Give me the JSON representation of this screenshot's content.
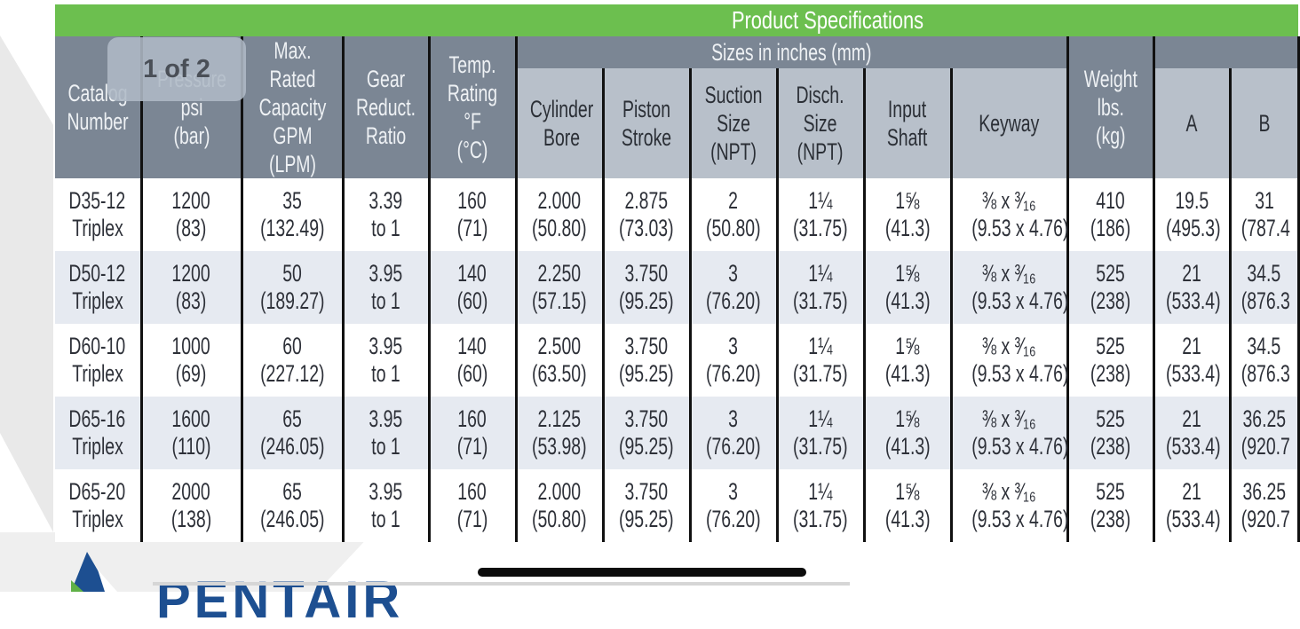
{
  "banner": {
    "title": "Product Specifications"
  },
  "group_header": {
    "sizes": "Sizes in inches (mm)"
  },
  "headers": {
    "catalog": "Catalog\nNumber",
    "pressure": "Pressure psi\n(bar)",
    "capacity": "Max. Rated\nCapacity\nGPM\n(LPM)",
    "gear": "Gear\nReduct.\nRatio",
    "temp": "Temp.\nRating\n°F\n(°C)",
    "bore": "Cylinder\nBore",
    "stroke": "Piston\nStroke",
    "suction": "Suction\nSize\n(NPT)",
    "disch": "Disch.\nSize\n(NPT)",
    "shaft": "Input\nShaft",
    "keyway": "Keyway",
    "weight": "Weight\nlbs.\n(kg)",
    "a": "A",
    "b": "B"
  },
  "rows": [
    {
      "catalog": [
        "D35-12",
        "Triplex"
      ],
      "pressure": [
        "1200",
        "(83)"
      ],
      "capacity": [
        "35",
        "(132.49)"
      ],
      "gear": [
        "3.39",
        "to 1"
      ],
      "temp": [
        "160",
        "(71)"
      ],
      "bore": [
        "2.000",
        "(50.80)"
      ],
      "stroke": [
        "2.875",
        "(73.03)"
      ],
      "suction": [
        "2",
        "(50.80)"
      ],
      "disch": [
        "1¼",
        "(31.75)"
      ],
      "shaft": [
        "1⅝",
        "(41.3)"
      ],
      "keyway": [
        "⅜ x ³⁄₁₆",
        "(9.53 x 4.76)"
      ],
      "weight": [
        "410",
        "(186)"
      ],
      "a": [
        "19.5",
        "(495.3)"
      ],
      "b": [
        "31",
        "(787.4"
      ]
    },
    {
      "catalog": [
        "D50-12",
        "Triplex"
      ],
      "pressure": [
        "1200",
        "(83)"
      ],
      "capacity": [
        "50",
        "(189.27)"
      ],
      "gear": [
        "3.95",
        "to 1"
      ],
      "temp": [
        "140",
        "(60)"
      ],
      "bore": [
        "2.250",
        "(57.15)"
      ],
      "stroke": [
        "3.750",
        "(95.25)"
      ],
      "suction": [
        "3",
        "(76.20)"
      ],
      "disch": [
        "1¼",
        "(31.75)"
      ],
      "shaft": [
        "1⅝",
        "(41.3)"
      ],
      "keyway": [
        "⅜ x ³⁄₁₆",
        "(9.53 x 4.76)"
      ],
      "weight": [
        "525",
        "(238)"
      ],
      "a": [
        "21",
        "(533.4)"
      ],
      "b": [
        "34.5",
        "(876.3"
      ]
    },
    {
      "catalog": [
        "D60-10",
        "Triplex"
      ],
      "pressure": [
        "1000",
        "(69)"
      ],
      "capacity": [
        "60",
        "(227.12)"
      ],
      "gear": [
        "3.95",
        "to 1"
      ],
      "temp": [
        "140",
        "(60)"
      ],
      "bore": [
        "2.500",
        "(63.50)"
      ],
      "stroke": [
        "3.750",
        "(95.25)"
      ],
      "suction": [
        "3",
        "(76.20)"
      ],
      "disch": [
        "1¼",
        "(31.75)"
      ],
      "shaft": [
        "1⅝",
        "(41.3)"
      ],
      "keyway": [
        "⅜ x ³⁄₁₆",
        "(9.53 x 4.76)"
      ],
      "weight": [
        "525",
        "(238)"
      ],
      "a": [
        "21",
        "(533.4)"
      ],
      "b": [
        "34.5",
        "(876.3"
      ]
    },
    {
      "catalog": [
        "D65-16",
        "Triplex"
      ],
      "pressure": [
        "1600",
        "(110)"
      ],
      "capacity": [
        "65",
        "(246.05)"
      ],
      "gear": [
        "3.95",
        "to 1"
      ],
      "temp": [
        "160",
        "(71)"
      ],
      "bore": [
        "2.125",
        "(53.98)"
      ],
      "stroke": [
        "3.750",
        "(95.25)"
      ],
      "suction": [
        "3",
        "(76.20)"
      ],
      "disch": [
        "1¼",
        "(31.75)"
      ],
      "shaft": [
        "1⅝",
        "(41.3)"
      ],
      "keyway": [
        "⅜ x ³⁄₁₆",
        "(9.53 x 4.76)"
      ],
      "weight": [
        "525",
        "(238)"
      ],
      "a": [
        "21",
        "(533.4)"
      ],
      "b": [
        "36.25",
        "(920.7"
      ]
    },
    {
      "catalog": [
        "D65-20",
        "Triplex"
      ],
      "pressure": [
        "2000",
        "(138)"
      ],
      "capacity": [
        "65",
        "(246.05)"
      ],
      "gear": [
        "3.95",
        "to 1"
      ],
      "temp": [
        "160",
        "(71)"
      ],
      "bore": [
        "2.000",
        "(50.80)"
      ],
      "stroke": [
        "3.750",
        "(95.25)"
      ],
      "suction": [
        "3",
        "(76.20)"
      ],
      "disch": [
        "1¼",
        "(31.75)"
      ],
      "shaft": [
        "1⅝",
        "(41.3)"
      ],
      "keyway": [
        "⅜ x ³⁄₁₆",
        "(9.53 x 4.76)"
      ],
      "weight": [
        "525",
        "(238)"
      ],
      "a": [
        "21",
        "(533.4)"
      ],
      "b": [
        "36.25",
        "(920.7"
      ]
    }
  ],
  "page_indicator": {
    "label": "1 of 2"
  },
  "logo": {
    "text": "PENTAIR"
  },
  "colors": {
    "banner_green": "#6cbf4f",
    "header_dark": "#7b8694",
    "header_light": "#b8c0ca",
    "row_alt": "#e6eaf1",
    "logo_blue": "#1d4f91"
  }
}
